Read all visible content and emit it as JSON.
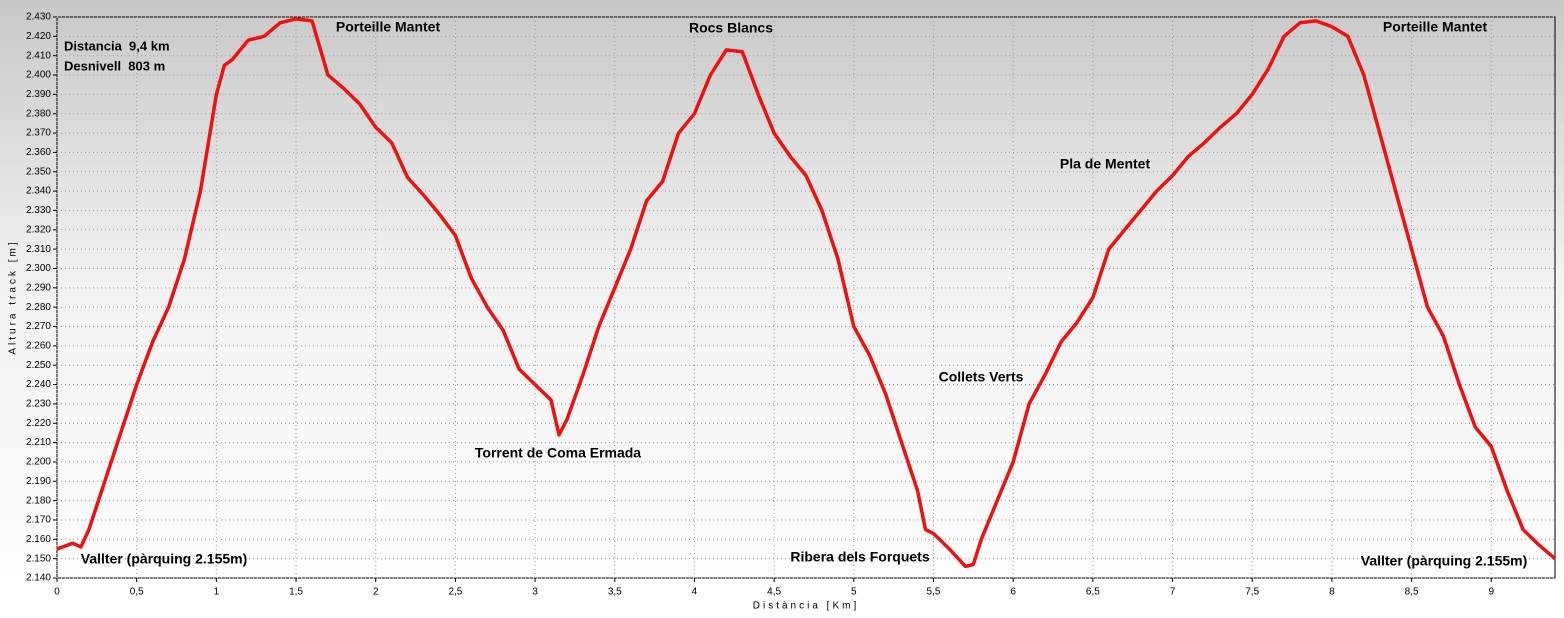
{
  "chart_data": {
    "type": "line",
    "x_label": "Distància [Km]",
    "y_label": "Altura track [m]",
    "annotations": [
      "Distancia  9,4 km",
      "Desnivell  803 m",
      "Porteille Mantet",
      "Rocs Blancs",
      "Porteille Mantet",
      "Pla de Mentet",
      "Collets Verts",
      "Torrent de Coma Ermada",
      "Ribera dels Forquets",
      "Vallter (pàrquing 2.155m)",
      "Vallter (pàrquing 2.155m)"
    ],
    "x": [
      0,
      0.1,
      0.15,
      0.2,
      0.3,
      0.4,
      0.5,
      0.6,
      0.7,
      0.8,
      0.9,
      1.0,
      1.05,
      1.1,
      1.2,
      1.3,
      1.4,
      1.5,
      1.6,
      1.7,
      1.8,
      1.9,
      2.0,
      2.1,
      2.2,
      2.3,
      2.4,
      2.5,
      2.6,
      2.7,
      2.8,
      2.9,
      3.0,
      3.1,
      3.15,
      3.2,
      3.3,
      3.4,
      3.5,
      3.6,
      3.7,
      3.8,
      3.9,
      4.0,
      4.1,
      4.2,
      4.3,
      4.4,
      4.5,
      4.6,
      4.7,
      4.8,
      4.9,
      5.0,
      5.1,
      5.2,
      5.3,
      5.4,
      5.45,
      5.5,
      5.6,
      5.7,
      5.75,
      5.8,
      5.9,
      6.0,
      6.1,
      6.2,
      6.3,
      6.4,
      6.5,
      6.6,
      6.7,
      6.8,
      6.9,
      7.0,
      7.1,
      7.2,
      7.3,
      7.4,
      7.5,
      7.6,
      7.7,
      7.8,
      7.9,
      8.0,
      8.1,
      8.2,
      8.3,
      8.4,
      8.5,
      8.6,
      8.7,
      8.8,
      8.9,
      9.0,
      9.1,
      9.2,
      9.3,
      9.4
    ],
    "series": [
      {
        "name": "Altura track",
        "color": "#ee1111",
        "values": [
          2155,
          2158,
          2156,
          2165,
          2190,
          2215,
          2240,
          2262,
          2280,
          2305,
          2340,
          2390,
          2405,
          2408,
          2418,
          2420,
          2427,
          2429,
          2428,
          2400,
          2393,
          2385,
          2373,
          2365,
          2347,
          2338,
          2328,
          2317,
          2295,
          2280,
          2268,
          2248,
          2240,
          2232,
          2214,
          2222,
          2245,
          2270,
          2290,
          2310,
          2335,
          2345,
          2370,
          2380,
          2400,
          2413,
          2412,
          2390,
          2370,
          2358,
          2348,
          2330,
          2305,
          2270,
          2255,
          2235,
          2210,
          2185,
          2165,
          2163,
          2155,
          2146,
          2147,
          2160,
          2180,
          2200,
          2230,
          2245,
          2262,
          2272,
          2285,
          2310,
          2320,
          2330,
          2340,
          2348,
          2358,
          2365,
          2373,
          2380,
          2390,
          2403,
          2420,
          2427,
          2428,
          2425,
          2420,
          2400,
          2370,
          2340,
          2310,
          2280,
          2265,
          2240,
          2218,
          2208,
          2185,
          2165,
          2157,
          2150
        ]
      }
    ],
    "xlim": [
      0,
      9.4
    ],
    "ylim": [
      2140,
      2430
    ],
    "xticks": [
      0,
      {
        "value": 0.5,
        "label": "0,5"
      },
      1,
      {
        "value": 1.5,
        "label": "1,5"
      },
      2,
      {
        "value": 2.5,
        "label": "2,5"
      },
      3,
      {
        "value": 3.5,
        "label": "3,5"
      },
      4,
      {
        "value": 4.5,
        "label": "4,5"
      },
      5,
      {
        "value": 5.5,
        "label": "5,5"
      },
      6,
      {
        "value": 6.5,
        "label": "6,5"
      },
      7,
      {
        "value": 7.5,
        "label": "7,5"
      },
      8,
      {
        "value": 8.5,
        "label": "8,5"
      },
      9
    ],
    "yticks": [
      {
        "value": 2140,
        "label": "2.140"
      },
      {
        "value": 2150,
        "label": "2.150"
      },
      {
        "value": 2160,
        "label": "2.160"
      },
      {
        "value": 2170,
        "label": "2.170"
      },
      {
        "value": 2180,
        "label": "2.180"
      },
      {
        "value": 2190,
        "label": "2.190"
      },
      {
        "value": 2200,
        "label": "2.200"
      },
      {
        "value": 2210,
        "label": "2.210"
      },
      {
        "value": 2220,
        "label": "2.220"
      },
      {
        "value": 2230,
        "label": "2.230"
      },
      {
        "value": 2240,
        "label": "2.240"
      },
      {
        "value": 2250,
        "label": "2.250"
      },
      {
        "value": 2260,
        "label": "2.260"
      },
      {
        "value": 2270,
        "label": "2.270"
      },
      {
        "value": 2280,
        "label": "2.280"
      },
      {
        "value": 2290,
        "label": "2.290"
      },
      {
        "value": 2300,
        "label": "2.300"
      },
      {
        "value": 2310,
        "label": "2.310"
      },
      {
        "value": 2320,
        "label": "2.320"
      },
      {
        "value": 2330,
        "label": "2.330"
      },
      {
        "value": 2340,
        "label": "2.340"
      },
      {
        "value": 2350,
        "label": "2.350"
      },
      {
        "value": 2360,
        "label": "2.360"
      },
      {
        "value": 2370,
        "label": "2.370"
      },
      {
        "value": 2380,
        "label": "2.380"
      },
      {
        "value": 2390,
        "label": "2.390"
      },
      {
        "value": 2400,
        "label": "2.400"
      },
      {
        "value": 2410,
        "label": "2.410"
      },
      {
        "value": 2420,
        "label": "2.420"
      },
      {
        "value": 2430,
        "label": "2.430"
      }
    ],
    "grid": true
  }
}
